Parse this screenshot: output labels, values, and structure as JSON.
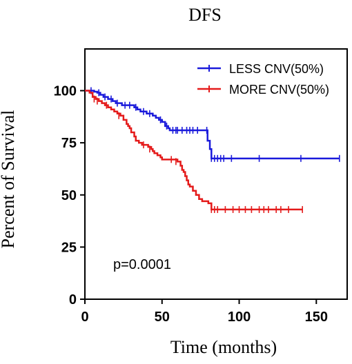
{
  "chart_data": {
    "type": "line",
    "title": "DFS",
    "xlabel": "Time (months)",
    "ylabel": "Percent of Survival",
    "xlim": [
      0,
      170
    ],
    "ylim": [
      0,
      120
    ],
    "xticks": [
      "0",
      "50",
      "100",
      "150"
    ],
    "yticks": [
      "0",
      "25",
      "50",
      "75",
      "100"
    ],
    "annotation": "p=0.0001",
    "legend_position": "top-right",
    "grid": false,
    "series": [
      {
        "name": "LESS CNV(50%)",
        "color": "#1a1adb",
        "steps": [
          [
            0,
            100
          ],
          [
            3,
            100
          ],
          [
            6,
            99.5
          ],
          [
            8,
            99
          ],
          [
            10,
            98
          ],
          [
            12,
            97
          ],
          [
            15,
            96
          ],
          [
            18,
            95
          ],
          [
            20,
            94
          ],
          [
            24,
            93
          ],
          [
            32,
            92
          ],
          [
            34,
            91
          ],
          [
            36,
            90
          ],
          [
            40,
            89
          ],
          [
            44,
            88
          ],
          [
            46,
            87
          ],
          [
            48,
            86
          ],
          [
            50,
            85
          ],
          [
            52,
            83
          ],
          [
            54,
            82
          ],
          [
            55,
            81
          ],
          [
            59,
            81
          ],
          [
            63,
            81
          ],
          [
            66,
            81
          ],
          [
            68,
            81
          ],
          [
            70,
            81
          ],
          [
            72,
            81
          ],
          [
            75,
            81
          ],
          [
            79,
            81
          ],
          [
            79.5,
            76
          ],
          [
            80,
            76
          ],
          [
            81,
            72
          ],
          [
            82,
            67.5
          ],
          [
            165,
            67.5
          ]
        ],
        "censored": [
          [
            4,
            100
          ],
          [
            9,
            99
          ],
          [
            13,
            97
          ],
          [
            17,
            96
          ],
          [
            21,
            94
          ],
          [
            26,
            93
          ],
          [
            29,
            93
          ],
          [
            33,
            92
          ],
          [
            38,
            90
          ],
          [
            42,
            89
          ],
          [
            49,
            86
          ],
          [
            53,
            83
          ],
          [
            57,
            81
          ],
          [
            59,
            81
          ],
          [
            60,
            81
          ],
          [
            63,
            81
          ],
          [
            66,
            81
          ],
          [
            68,
            81
          ],
          [
            70,
            81
          ],
          [
            73,
            81
          ],
          [
            79,
            81
          ],
          [
            82,
            67.5
          ],
          [
            84,
            67.5
          ],
          [
            86,
            67.5
          ],
          [
            88,
            67.5
          ],
          [
            90,
            67.5
          ],
          [
            95,
            67.5
          ],
          [
            113,
            67.5
          ],
          [
            140,
            67.5
          ],
          [
            165,
            67.5
          ]
        ]
      },
      {
        "name": "MORE CNV(50%)",
        "color": "#e41a1a",
        "steps": [
          [
            0,
            100
          ],
          [
            3,
            99
          ],
          [
            5,
            97
          ],
          [
            7,
            96
          ],
          [
            9,
            95
          ],
          [
            11,
            94
          ],
          [
            13,
            93
          ],
          [
            15,
            92
          ],
          [
            17,
            91
          ],
          [
            19,
            90
          ],
          [
            21,
            89
          ],
          [
            23,
            88
          ],
          [
            25,
            86
          ],
          [
            27,
            84
          ],
          [
            28,
            83
          ],
          [
            29,
            82
          ],
          [
            30,
            80
          ],
          [
            32,
            78
          ],
          [
            33,
            76
          ],
          [
            35,
            75
          ],
          [
            37,
            74
          ],
          [
            41,
            73
          ],
          [
            43,
            72
          ],
          [
            44,
            71
          ],
          [
            45,
            70
          ],
          [
            47,
            69
          ],
          [
            49,
            68
          ],
          [
            50,
            67
          ],
          [
            58,
            67
          ],
          [
            60,
            66
          ],
          [
            62,
            64
          ],
          [
            63,
            62
          ],
          [
            64,
            61
          ],
          [
            65,
            59
          ],
          [
            66,
            57
          ],
          [
            67,
            55
          ],
          [
            68,
            54
          ],
          [
            70,
            52
          ],
          [
            72,
            50
          ],
          [
            74,
            48
          ],
          [
            76,
            47
          ],
          [
            80,
            46
          ],
          [
            82,
            43
          ],
          [
            141,
            43
          ]
        ],
        "censored": [
          [
            6,
            96
          ],
          [
            8,
            95
          ],
          [
            14,
            93
          ],
          [
            22,
            88
          ],
          [
            38,
            74
          ],
          [
            42,
            72
          ],
          [
            56,
            67
          ],
          [
            59,
            66
          ],
          [
            82,
            43
          ],
          [
            84,
            43
          ],
          [
            86,
            43
          ],
          [
            91,
            43
          ],
          [
            96,
            43
          ],
          [
            100,
            43
          ],
          [
            104,
            43
          ],
          [
            108,
            43
          ],
          [
            113,
            43
          ],
          [
            116,
            43
          ],
          [
            119,
            43
          ],
          [
            124,
            43
          ],
          [
            127,
            43
          ],
          [
            132,
            43
          ],
          [
            141,
            43
          ]
        ]
      }
    ]
  }
}
